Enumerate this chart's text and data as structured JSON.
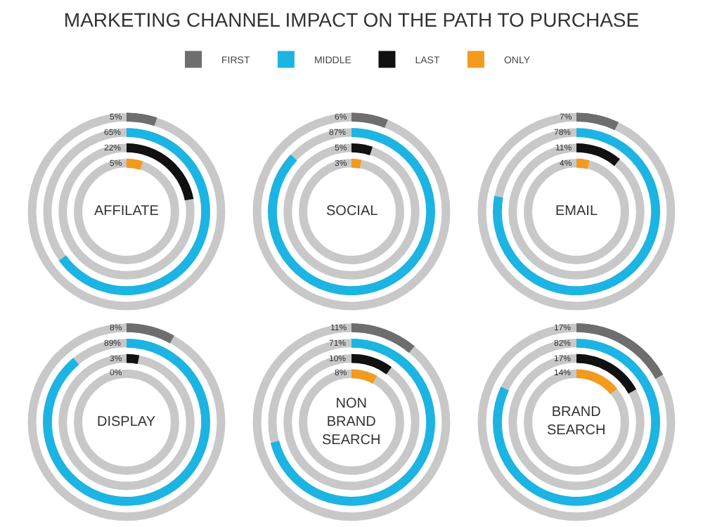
{
  "chart_data": {
    "type": "other",
    "title": "MARKETING CHANNEL IMPACT ON THE PATH TO PURCHASE",
    "legend": "top",
    "categories": [
      "AFFILATE",
      "SOCIAL",
      "EMAIL",
      "DISPLAY",
      "NON BRAND SEARCH",
      "BRAND SEARCH"
    ],
    "series": [
      {
        "name": "FIRST",
        "color": "#6e6e6e",
        "values": [
          5,
          6,
          7,
          8,
          11,
          17
        ],
        "value_labels": [
          "5%",
          "6%",
          "7%",
          "8%",
          "11%",
          "17%"
        ]
      },
      {
        "name": "MIDDLE",
        "color": "#1cb4e2",
        "values": [
          65,
          87,
          78,
          89,
          71,
          82
        ],
        "value_labels": [
          "65%",
          "87%",
          "78%",
          "89%",
          "71%",
          "82%"
        ]
      },
      {
        "name": "LAST",
        "color": "#111111",
        "values": [
          22,
          5,
          11,
          3,
          10,
          17
        ],
        "value_labels": [
          "22%",
          "5%",
          "11%",
          "3%",
          "10%",
          "17%"
        ]
      },
      {
        "name": "ONLY",
        "color": "#f29b1f",
        "values": [
          5,
          3,
          4,
          0,
          8,
          14
        ],
        "value_labels": [
          "5%",
          "3%",
          "4%",
          "0%",
          "8%",
          "14%"
        ]
      }
    ]
  }
}
